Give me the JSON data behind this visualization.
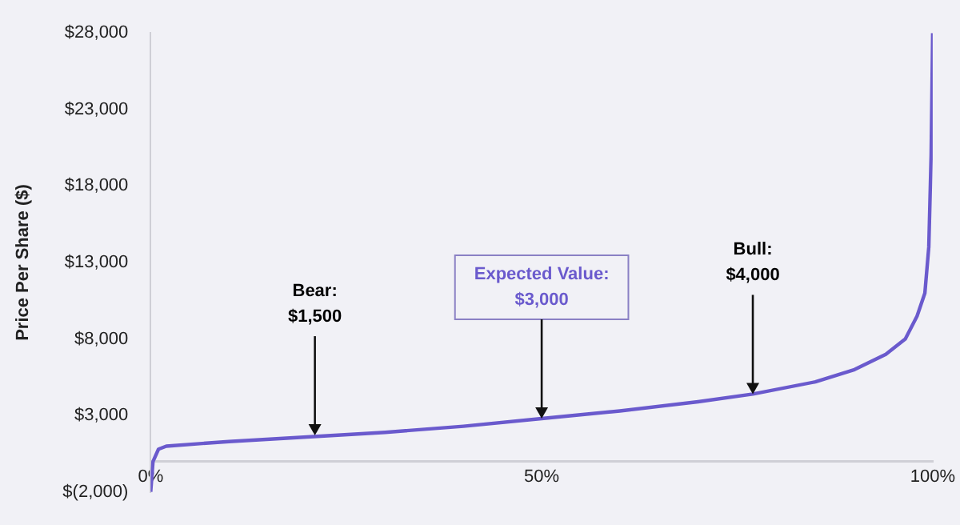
{
  "chart_data": {
    "type": "line",
    "ylabel": "Price Per Share ($)",
    "series": [
      {
        "color": "#6a5acd",
        "x": [
          0,
          0.3,
          1,
          2,
          10,
          20,
          30,
          40,
          50,
          60,
          70,
          77,
          85,
          90,
          94,
          96.5,
          98,
          99,
          99.5,
          99.8,
          100
        ],
        "values": [
          -2000,
          0,
          800,
          1000,
          1300,
          1600,
          1900,
          2300,
          2800,
          3300,
          3900,
          4400,
          5200,
          6000,
          7000,
          8000,
          9500,
          11000,
          14000,
          20000,
          28000
        ]
      }
    ],
    "xlim": [
      0,
      100
    ],
    "xticks": [
      {
        "value": 0,
        "label": "0%"
      },
      {
        "value": 50,
        "label": "50%"
      },
      {
        "value": 100,
        "label": "100%"
      }
    ],
    "ylim": [
      -2000,
      28000
    ],
    "yticks": [
      {
        "value": -2000,
        "label": "$(2,000)"
      },
      {
        "value": 3000,
        "label": "$3,000"
      },
      {
        "value": 8000,
        "label": "$8,000"
      },
      {
        "value": 13000,
        "label": "$13,000"
      },
      {
        "value": 18000,
        "label": "$18,000"
      },
      {
        "value": 23000,
        "label": "$23,000"
      },
      {
        "value": 28000,
        "label": "$28,000"
      }
    ],
    "annotations": [
      {
        "text": "Bear:\n$1,500",
        "x": 21,
        "y": 1700
      },
      {
        "text": "Expected Value:\n$3,000",
        "x": 50,
        "y": 2800
      },
      {
        "text": "Bull:\n$4,000",
        "x": 77,
        "y": 4400
      }
    ],
    "grid": false,
    "legend": false,
    "marker": "none",
    "line_style": "solid"
  }
}
